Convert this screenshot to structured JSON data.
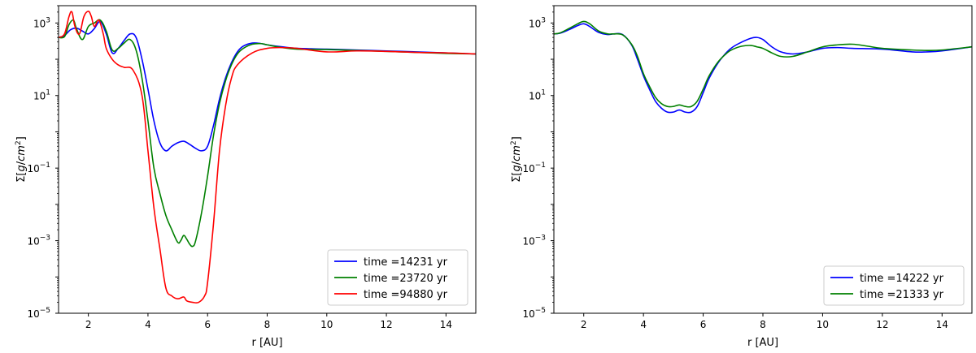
{
  "chart_data": [
    {
      "type": "line",
      "xlabel": "r [AU]",
      "ylabel": "Σ[g/cm²]",
      "ylabel_parts": {
        "prefix": "Σ[",
        "italic": "g",
        "slash": "/",
        "italic2": "cm",
        "sup": "2",
        "suffix": "]"
      },
      "xlim": [
        1,
        15
      ],
      "ylim": [
        1e-05,
        3000
      ],
      "yscale": "log",
      "grid": false,
      "legend_position": "lower-right",
      "xticks": [
        2,
        4,
        6,
        8,
        10,
        12,
        14
      ],
      "yticks": [
        {
          "value": 1e-05,
          "base": "10",
          "exp": "−5"
        },
        {
          "value": 0.001,
          "base": "10",
          "exp": "−3"
        },
        {
          "value": 0.1,
          "base": "10",
          "exp": "−1"
        },
        {
          "value": 10,
          "base": "10",
          "exp": "1"
        },
        {
          "value": 1000,
          "base": "10",
          "exp": "3"
        }
      ],
      "series": [
        {
          "name": "time =14231 yr",
          "color": "#0000ff",
          "x": [
            1.0,
            1.2,
            1.4,
            1.6,
            1.8,
            2.0,
            2.2,
            2.4,
            2.6,
            2.8,
            3.0,
            3.2,
            3.4,
            3.6,
            3.8,
            4.0,
            4.2,
            4.4,
            4.6,
            4.8,
            5.0,
            5.2,
            5.4,
            5.6,
            5.8,
            6.0,
            6.2,
            6.4,
            6.6,
            6.8,
            7.0,
            7.2,
            7.5,
            7.8,
            8.0,
            8.5,
            9.0,
            10.0,
            11.0,
            12.0,
            13.0,
            14.0,
            15.0
          ],
          "y": [
            400,
            450,
            650,
            720,
            600,
            500,
            700,
            1100,
            500,
            150,
            200,
            330,
            500,
            400,
            100,
            15,
            2,
            0.5,
            0.3,
            0.4,
            0.5,
            0.55,
            0.45,
            0.35,
            0.3,
            0.4,
            1.5,
            8,
            30,
            80,
            160,
            230,
            280,
            270,
            250,
            220,
            200,
            190,
            180,
            170,
            160,
            150,
            140
          ]
        },
        {
          "name": "time =23720 yr",
          "color": "#008000",
          "x": [
            1.0,
            1.2,
            1.35,
            1.5,
            1.6,
            1.8,
            2.0,
            2.2,
            2.4,
            2.6,
            2.8,
            3.0,
            3.2,
            3.4,
            3.6,
            3.8,
            4.0,
            4.2,
            4.4,
            4.6,
            4.8,
            5.0,
            5.1,
            5.2,
            5.3,
            5.4,
            5.5,
            5.6,
            5.8,
            6.0,
            6.2,
            6.4,
            6.6,
            6.8,
            7.0,
            7.2,
            7.5,
            7.8,
            8.0,
            8.5,
            9.0,
            10.0,
            11.0,
            12.0,
            13.0,
            14.0,
            15.0
          ],
          "y": [
            400,
            420,
            900,
            1200,
            700,
            350,
            800,
            1000,
            1200,
            600,
            180,
            200,
            280,
            350,
            180,
            30,
            2,
            0.1,
            0.02,
            0.005,
            0.002,
            0.0009,
            0.001,
            0.0014,
            0.0011,
            0.0008,
            0.0007,
            0.001,
            0.006,
            0.06,
            0.8,
            6,
            25,
            70,
            140,
            200,
            260,
            270,
            250,
            210,
            190,
            185,
            175,
            165,
            155,
            145,
            140
          ]
        },
        {
          "name": "time =94880 yr",
          "color": "#ff0000",
          "x": [
            1.0,
            1.2,
            1.35,
            1.45,
            1.55,
            1.7,
            1.85,
            2.0,
            2.1,
            2.2,
            2.35,
            2.5,
            2.6,
            2.8,
            3.0,
            3.2,
            3.5,
            3.8,
            4.0,
            4.2,
            4.4,
            4.6,
            4.8,
            5.0,
            5.2,
            5.3,
            5.5,
            5.7,
            5.9,
            6.0,
            6.2,
            6.4,
            6.6,
            6.8,
            7.0,
            7.5,
            8.0,
            8.5,
            9.0,
            10.0,
            11.0,
            12.0,
            13.0,
            14.0,
            15.0
          ],
          "y": [
            400,
            500,
            1500,
            2000,
            800,
            500,
            1500,
            2100,
            1500,
            800,
            1200,
            500,
            200,
            100,
            70,
            60,
            50,
            10,
            0.3,
            0.008,
            0.0006,
            5e-05,
            3e-05,
            2.5e-05,
            2.8e-05,
            2.2e-05,
            2e-05,
            2e-05,
            3e-05,
            7e-05,
            0.003,
            0.3,
            5,
            30,
            70,
            150,
            200,
            210,
            200,
            160,
            170,
            165,
            155,
            150,
            140
          ]
        }
      ]
    },
    {
      "type": "line",
      "xlabel": "r [AU]",
      "ylabel": "Σ[g/cm²]",
      "ylabel_parts": {
        "prefix": "Σ[",
        "italic": "g",
        "slash": "/",
        "italic2": "cm",
        "sup": "2",
        "suffix": "]"
      },
      "xlim": [
        1,
        15
      ],
      "ylim": [
        1e-05,
        3000
      ],
      "yscale": "log",
      "grid": false,
      "legend_position": "lower-right",
      "xticks": [
        2,
        4,
        6,
        8,
        10,
        12,
        14
      ],
      "yticks": [
        {
          "value": 1e-05,
          "base": "10",
          "exp": "−5"
        },
        {
          "value": 0.001,
          "base": "10",
          "exp": "−3"
        },
        {
          "value": 0.1,
          "base": "10",
          "exp": "−1"
        },
        {
          "value": 10,
          "base": "10",
          "exp": "1"
        },
        {
          "value": 1000,
          "base": "10",
          "exp": "3"
        }
      ],
      "series": [
        {
          "name": "time =14222 yr",
          "color": "#0000ff",
          "x": [
            1.0,
            1.2,
            1.5,
            1.8,
            2.0,
            2.2,
            2.5,
            2.8,
            3.0,
            3.3,
            3.6,
            3.8,
            4.0,
            4.2,
            4.4,
            4.6,
            4.8,
            5.0,
            5.2,
            5.4,
            5.6,
            5.8,
            6.0,
            6.2,
            6.5,
            6.8,
            7.0,
            7.3,
            7.6,
            7.8,
            8.0,
            8.3,
            8.6,
            9.0,
            9.5,
            10.0,
            10.5,
            11.0,
            12.0,
            13.0,
            13.5,
            14.0,
            15.0
          ],
          "y": [
            500,
            520,
            650,
            850,
            950,
            800,
            550,
            480,
            500,
            480,
            250,
            100,
            35,
            15,
            7,
            4.5,
            3.5,
            3.5,
            4.0,
            3.5,
            3.5,
            5,
            12,
            30,
            80,
            160,
            220,
            300,
            380,
            400,
            350,
            220,
            160,
            140,
            160,
            200,
            210,
            200,
            190,
            160,
            160,
            170,
            220
          ]
        },
        {
          "name": "time =21333 yr",
          "color": "#008000",
          "x": [
            1.0,
            1.2,
            1.5,
            1.8,
            2.0,
            2.2,
            2.5,
            2.8,
            3.0,
            3.3,
            3.6,
            3.8,
            4.0,
            4.2,
            4.4,
            4.6,
            4.8,
            5.0,
            5.2,
            5.4,
            5.6,
            5.8,
            6.0,
            6.2,
            6.5,
            6.8,
            7.0,
            7.3,
            7.6,
            7.8,
            8.0,
            8.3,
            8.6,
            9.0,
            9.5,
            10.0,
            10.5,
            11.0,
            11.5,
            12.0,
            13.0,
            13.5,
            14.0,
            15.0
          ],
          "y": [
            500,
            530,
            700,
            950,
            1100,
            950,
            600,
            500,
            500,
            470,
            260,
            120,
            40,
            18,
            9,
            6,
            5,
            5,
            5.5,
            5,
            5,
            7,
            15,
            35,
            85,
            150,
            190,
            230,
            240,
            220,
            200,
            150,
            120,
            120,
            160,
            220,
            250,
            260,
            230,
            200,
            180,
            175,
            180,
            220
          ]
        }
      ]
    }
  ]
}
